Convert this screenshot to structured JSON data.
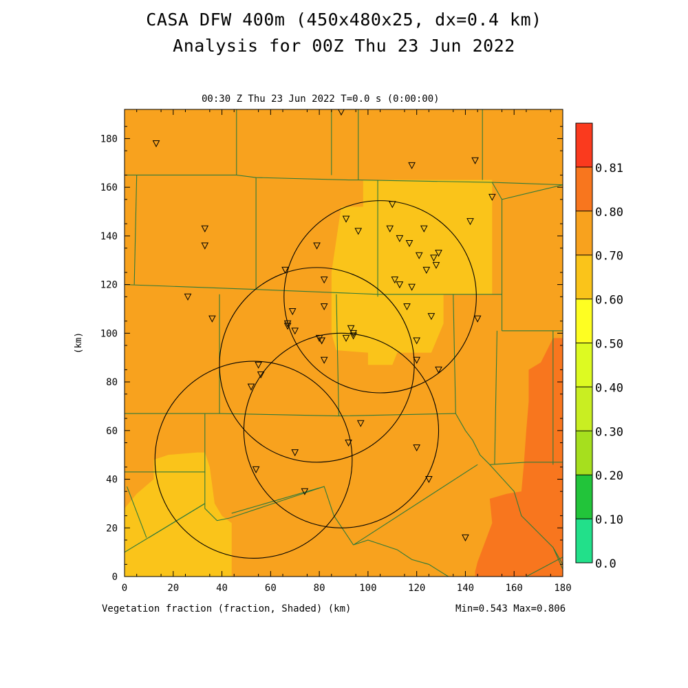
{
  "header": {
    "title_line1": "CASA DFW 400m (450x480x25, dx=0.4 km)",
    "title_line2": "Analysis for 00Z Thu 23 Jun 2022",
    "subtitle": "00:30 Z Thu 23 Jun 2022   T=0.0 s (0:00:00)"
  },
  "footer": {
    "field_label": "Vegetation fraction (fraction, Shaded)  (km)",
    "minmax": "Min=0.543 Max=0.806"
  },
  "chart_data": {
    "type": "heatmap",
    "xlabel": "(km)",
    "ylabel": "(km)",
    "xlim": [
      0,
      180
    ],
    "ylim": [
      0,
      192
    ],
    "xticks": [
      0,
      20,
      40,
      60,
      80,
      100,
      120,
      140,
      160,
      180
    ],
    "yticks": [
      0,
      20,
      40,
      60,
      80,
      100,
      120,
      140,
      160,
      180
    ],
    "colorbar": {
      "levels": [
        "0.0",
        "0.10",
        "0.20",
        "0.30",
        "0.40",
        "0.50",
        "0.60",
        "0.70",
        "0.80",
        "0.81"
      ],
      "colors": [
        "#22e08a",
        "#22c43a",
        "#a6df1e",
        "#c9ee22",
        "#ddfa22",
        "#fefe22",
        "#fac41a",
        "#f8a21e",
        "#f8761e",
        "#fa3a1e"
      ]
    },
    "fill_regions": [
      {
        "name": "base",
        "color": "#f8a21e",
        "points": [
          [
            0,
            0
          ],
          [
            180,
            0
          ],
          [
            180,
            192
          ],
          [
            0,
            192
          ]
        ]
      },
      {
        "name": "northeast-low",
        "color": "#fac41a",
        "points": [
          [
            98,
            163
          ],
          [
            151,
            163
          ],
          [
            151,
            116
          ],
          [
            131,
            116
          ],
          [
            131,
            104
          ],
          [
            126,
            92
          ],
          [
            112,
            92
          ],
          [
            110,
            87
          ],
          [
            100,
            87
          ],
          [
            100,
            92
          ],
          [
            87,
            93
          ],
          [
            85,
            100
          ],
          [
            85,
            125
          ],
          [
            89,
            152
          ],
          [
            98,
            152
          ]
        ]
      },
      {
        "name": "southwest-low",
        "color": "#fac41a",
        "points": [
          [
            0,
            0
          ],
          [
            44,
            0
          ],
          [
            44,
            22
          ],
          [
            40,
            25
          ],
          [
            37,
            30
          ],
          [
            35,
            45
          ],
          [
            33,
            51
          ],
          [
            30,
            51
          ],
          [
            18,
            50
          ],
          [
            12,
            48
          ],
          [
            12,
            40
          ],
          [
            5,
            34
          ],
          [
            0,
            28
          ]
        ]
      },
      {
        "name": "southeast-high",
        "color": "#f8761e",
        "points": [
          [
            144,
            0
          ],
          [
            180,
            0
          ],
          [
            180,
            98
          ],
          [
            176,
            98
          ],
          [
            171,
            88
          ],
          [
            166,
            85
          ],
          [
            166,
            72
          ],
          [
            165,
            60
          ],
          [
            164,
            46
          ],
          [
            163,
            35
          ],
          [
            157,
            34
          ],
          [
            150,
            32
          ],
          [
            151,
            22
          ],
          [
            148,
            14
          ],
          [
            145,
            6
          ],
          [
            144,
            2
          ]
        ]
      }
    ],
    "boundaries": [
      [
        [
          46,
          192
        ],
        [
          46,
          165
        ]
      ],
      [
        [
          85,
          192
        ],
        [
          85,
          165
        ]
      ],
      [
        [
          96,
          192
        ],
        [
          96,
          163
        ]
      ],
      [
        [
          147,
          192
        ],
        [
          147,
          163
        ]
      ],
      [
        [
          0,
          165
        ],
        [
          46,
          165
        ],
        [
          54,
          164
        ],
        [
          92,
          163
        ],
        [
          96,
          163
        ],
        [
          151,
          162
        ],
        [
          180,
          161
        ]
      ],
      [
        [
          151,
          162
        ],
        [
          155,
          155
        ],
        [
          180,
          161
        ]
      ],
      [
        [
          5,
          165
        ],
        [
          4,
          120
        ]
      ],
      [
        [
          54,
          164
        ],
        [
          54,
          118
        ]
      ],
      [
        [
          104,
          163
        ],
        [
          104,
          115
        ]
      ],
      [
        [
          0,
          120
        ],
        [
          54,
          118
        ]
      ],
      [
        [
          54,
          118
        ],
        [
          104,
          116
        ],
        [
          155,
          116
        ]
      ],
      [
        [
          155,
          155
        ],
        [
          155,
          101
        ]
      ],
      [
        [
          39,
          116
        ],
        [
          39,
          67
        ]
      ],
      [
        [
          87,
          116
        ],
        [
          88,
          66
        ]
      ],
      [
        [
          135,
          116
        ],
        [
          136,
          67
        ]
      ],
      [
        [
          0,
          67
        ],
        [
          39,
          67
        ],
        [
          88,
          66
        ],
        [
          136,
          67
        ]
      ],
      [
        [
          136,
          67
        ],
        [
          140,
          60
        ],
        [
          143,
          56
        ],
        [
          146,
          50
        ],
        [
          150,
          46
        ],
        [
          165,
          47
        ],
        [
          180,
          47
        ]
      ],
      [
        [
          155,
          101
        ],
        [
          180,
          101
        ]
      ],
      [
        [
          153,
          101
        ],
        [
          152,
          46
        ]
      ],
      [
        [
          176,
          101
        ],
        [
          176,
          46
        ]
      ],
      [
        [
          33,
          67
        ],
        [
          33,
          43
        ],
        [
          0,
          43
        ]
      ],
      [
        [
          33,
          43
        ],
        [
          33,
          28
        ],
        [
          38,
          23
        ],
        [
          43,
          24
        ]
      ],
      [
        [
          33,
          30
        ],
        [
          10,
          16
        ]
      ],
      [
        [
          33,
          30
        ],
        [
          0,
          10
        ]
      ],
      [
        [
          1,
          37
        ],
        [
          9,
          16
        ]
      ],
      [
        [
          43,
          24
        ],
        [
          82,
          37
        ],
        [
          86,
          25
        ],
        [
          94,
          13
        ]
      ],
      [
        [
          82,
          37
        ],
        [
          44,
          26
        ]
      ],
      [
        [
          94,
          13
        ],
        [
          145,
          46
        ]
      ],
      [
        [
          94,
          13
        ],
        [
          100,
          15
        ],
        [
          106,
          13
        ],
        [
          112,
          11
        ],
        [
          118,
          7
        ],
        [
          125,
          5
        ],
        [
          133,
          0
        ]
      ],
      [
        [
          150,
          46
        ],
        [
          160,
          35
        ],
        [
          163,
          25
        ],
        [
          170,
          18
        ],
        [
          176,
          12
        ],
        [
          180,
          5
        ]
      ],
      [
        [
          165,
          0
        ],
        [
          180,
          8
        ]
      ],
      [
        [
          176,
          12
        ],
        [
          180,
          3
        ]
      ]
    ],
    "range_rings": [
      {
        "center": [
          79,
          87
        ],
        "radius": 40
      },
      {
        "center": [
          105,
          115
        ],
        "radius": 39.5
      },
      {
        "center": [
          53,
          48
        ],
        "radius": 40.5
      },
      {
        "center": [
          89,
          60
        ],
        "radius": 40
      }
    ],
    "stations": [
      [
        13,
        178
      ],
      [
        89,
        191
      ],
      [
        118,
        169
      ],
      [
        144,
        171
      ],
      [
        151,
        156
      ],
      [
        33,
        143
      ],
      [
        33,
        136
      ],
      [
        26,
        115
      ],
      [
        36,
        106
      ],
      [
        110,
        153
      ],
      [
        142,
        146
      ],
      [
        91,
        147
      ],
      [
        96,
        142
      ],
      [
        109,
        143
      ],
      [
        113,
        139
      ],
      [
        117,
        137
      ],
      [
        123,
        143
      ],
      [
        121,
        132
      ],
      [
        127,
        131
      ],
      [
        128,
        128
      ],
      [
        124,
        126
      ],
      [
        129,
        133
      ],
      [
        79,
        136
      ],
      [
        66,
        126
      ],
      [
        82,
        122
      ],
      [
        111,
        122
      ],
      [
        113,
        120
      ],
      [
        118,
        119
      ],
      [
        69,
        109
      ],
      [
        82,
        111
      ],
      [
        116,
        111
      ],
      [
        126,
        107
      ],
      [
        145,
        106
      ],
      [
        67,
        104
      ],
      [
        67,
        103
      ],
      [
        70,
        101
      ],
      [
        93,
        102
      ],
      [
        94,
        100
      ],
      [
        94,
        99
      ],
      [
        91,
        98
      ],
      [
        80,
        98
      ],
      [
        81,
        97
      ],
      [
        81,
        97
      ],
      [
        120,
        97
      ],
      [
        82,
        89
      ],
      [
        120,
        89
      ],
      [
        129,
        85
      ],
      [
        55,
        87
      ],
      [
        56,
        83
      ],
      [
        52,
        78
      ],
      [
        97,
        63
      ],
      [
        92,
        55
      ],
      [
        120,
        53
      ],
      [
        70,
        51
      ],
      [
        54,
        44
      ],
      [
        125,
        40
      ],
      [
        74,
        35
      ],
      [
        140,
        16
      ]
    ]
  }
}
